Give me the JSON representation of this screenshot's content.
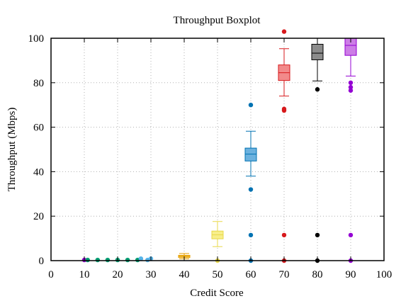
{
  "chart_data": {
    "type": "boxplot",
    "title": "Throughput Boxplot",
    "xlabel": "Credit Score",
    "ylabel": "Throughput (Mbps)",
    "xlim": [
      0,
      100
    ],
    "ylim": [
      0,
      100
    ],
    "xticks": [
      0,
      10,
      20,
      30,
      40,
      50,
      60,
      70,
      80,
      90,
      100
    ],
    "yticks": [
      0,
      20,
      40,
      60,
      80,
      100
    ],
    "grid": true,
    "boxes": [
      {
        "x": 40,
        "q1": 1.4,
        "median": 1.9,
        "q3": 2.4,
        "whisker_low": 0.8,
        "whisker_high": 3.2,
        "outliers": [],
        "color": "#e69f00",
        "fill": "#f3c24f"
      },
      {
        "x": 50,
        "q1": 9.8,
        "median": 11.6,
        "q3": 13.3,
        "whisker_low": 6.3,
        "whisker_high": 17.6,
        "outliers": [
          0
        ],
        "color": "#e8d84a",
        "fill": "#f7ee8a"
      },
      {
        "x": 60,
        "q1": 44.8,
        "median": 47.9,
        "q3": 50.6,
        "whisker_low": 38.0,
        "whisker_high": 58.2,
        "outliers": [
          70,
          32,
          11.5,
          0
        ],
        "color": "#0072b2",
        "fill": "#6bb1de"
      },
      {
        "x": 70,
        "q1": 81.0,
        "median": 84.5,
        "q3": 88.0,
        "whisker_low": 74.0,
        "whisker_high": 95.3,
        "outliers": [
          103,
          68.2,
          67.5,
          11.5,
          0
        ],
        "color": "#d7191c",
        "fill": "#f28a8a"
      },
      {
        "x": 80,
        "q1": 90.3,
        "median": 93.3,
        "q3": 97.3,
        "whisker_low": 80.8,
        "whisker_high": 100,
        "outliers": [
          77,
          11.5,
          0
        ],
        "color": "#000000",
        "fill": "#8c8c8c"
      },
      {
        "x": 90,
        "q1": 92.3,
        "median": 96.8,
        "q3": 100,
        "whisker_low": 83.0,
        "whisker_high": 100,
        "outliers": [
          80,
          78,
          76.5,
          11.5,
          0
        ],
        "color": "#9400d3",
        "fill": "#cc7de6"
      }
    ],
    "near_zero_points": [
      {
        "x": 10,
        "y": 0.3,
        "color": "#9400d3"
      },
      {
        "x": 11,
        "y": 0.3,
        "color": "#009e73"
      },
      {
        "x": 14,
        "y": 0.3,
        "color": "#009e73"
      },
      {
        "x": 17,
        "y": 0.3,
        "color": "#009e73"
      },
      {
        "x": 20,
        "y": 0.3,
        "color": "#009e73"
      },
      {
        "x": 23,
        "y": 0.3,
        "color": "#009e73"
      },
      {
        "x": 26,
        "y": 0.3,
        "color": "#009e73"
      },
      {
        "x": 27,
        "y": 0.9,
        "color": "#56b4e9"
      },
      {
        "x": 29,
        "y": 0.3,
        "color": "#56b4e9"
      },
      {
        "x": 30,
        "y": 0.9,
        "color": "#56b4e9"
      }
    ]
  }
}
